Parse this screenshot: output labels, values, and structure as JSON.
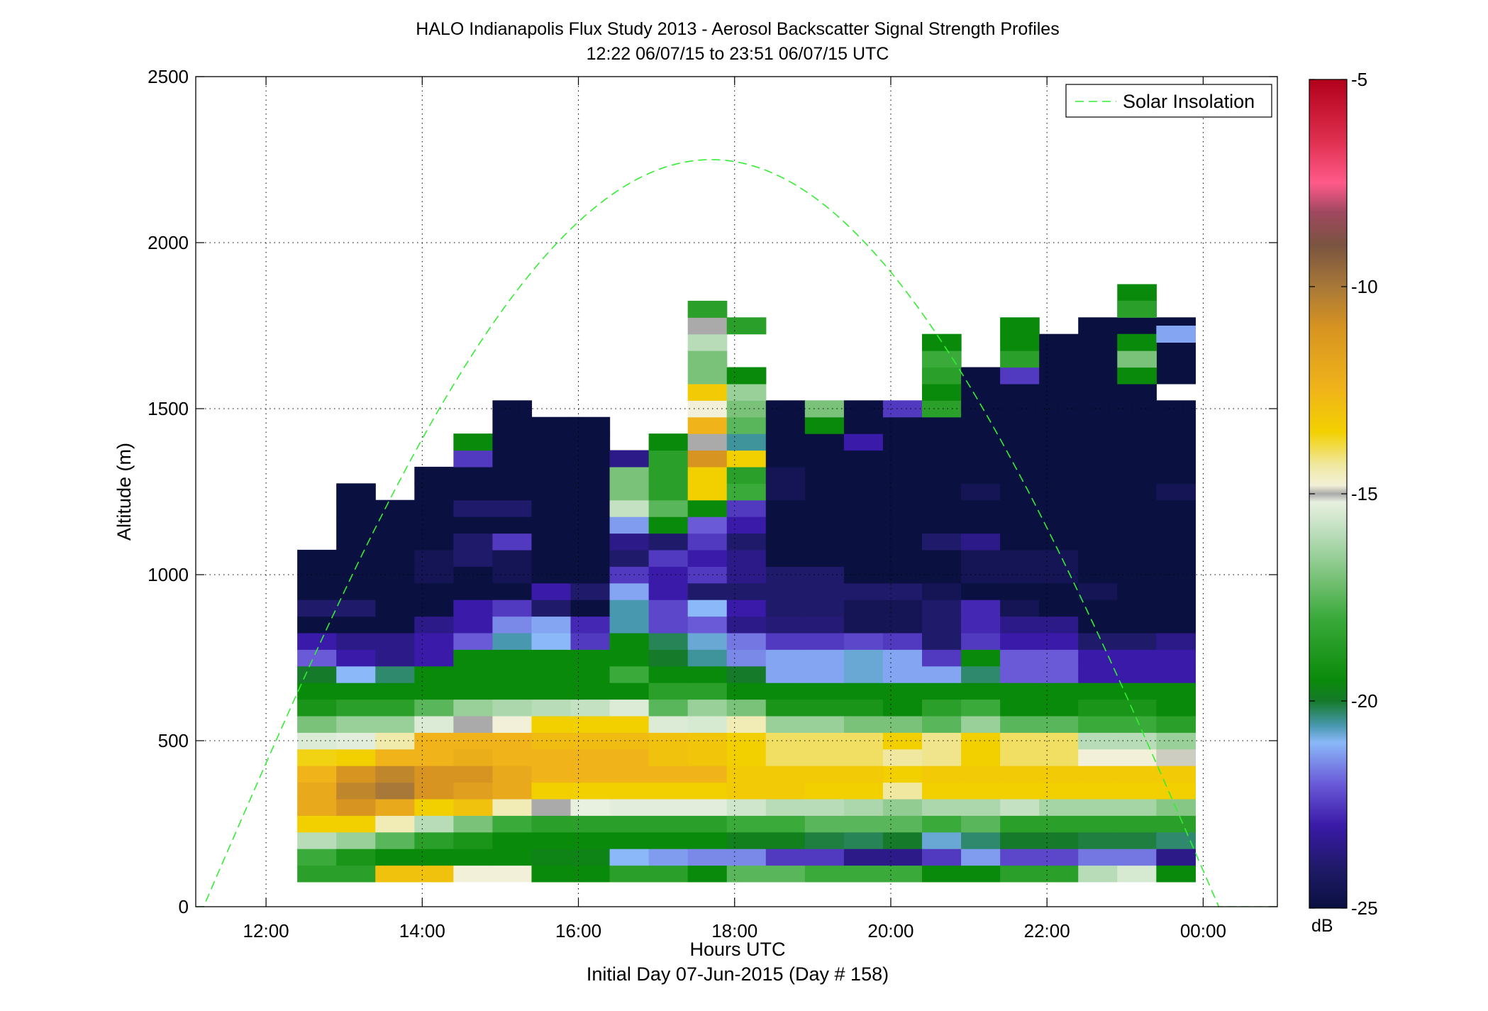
{
  "chart_data": {
    "type": "heatmap",
    "title": "HALO Indianapolis Flux Study 2013 - Aerosol Backscatter Signal Strength Profiles",
    "subtitle": "12:22 06/07/15 to 23:51 06/07/15  UTC",
    "xlabel": "Hours UTC",
    "xlabel2": "Initial Day 07-Jun-2015 (Day # 158)",
    "ylabel": "Altitude (m)",
    "xlim": [
      11.1,
      24.95
    ],
    "ylim": [
      0,
      2500
    ],
    "x_ticks": [
      12,
      14,
      16,
      18,
      20,
      22,
      24
    ],
    "x_tick_labels": [
      "12:00",
      "14:00",
      "16:00",
      "18:00",
      "20:00",
      "22:00",
      "00:00"
    ],
    "y_ticks": [
      0,
      500,
      1000,
      1500,
      2000,
      2500
    ],
    "y_tick_labels": [
      "0",
      "500",
      "1000",
      "1500",
      "2000",
      "2500"
    ],
    "grid": true,
    "legend": {
      "position": "top-right",
      "entries": [
        {
          "name": "Solar Insolation",
          "color": "#33ee33",
          "style": "dashed"
        }
      ]
    },
    "colorbar": {
      "unit": "dB",
      "range": [
        -25,
        -5
      ],
      "ticks": [
        -25,
        -20,
        -15,
        -10,
        -5
      ],
      "tick_labels": [
        "-25",
        "-20",
        "-15",
        "-10",
        "-5"
      ],
      "stops": [
        [
          -25,
          "#0a1040"
        ],
        [
          -24,
          "#201a6a"
        ],
        [
          -23,
          "#3a1aa8"
        ],
        [
          -22,
          "#6a5ad8"
        ],
        [
          -21,
          "#8ab8f8"
        ],
        [
          -20.6,
          "#4898b0"
        ],
        [
          -20,
          "#157a2a"
        ],
        [
          -19.5,
          "#0a8a0a"
        ],
        [
          -18,
          "#3aaa3a"
        ],
        [
          -17,
          "#7ac27a"
        ],
        [
          -16,
          "#b8dcb8"
        ],
        [
          -15.2,
          "#e8f0e0"
        ],
        [
          -15,
          "#aaaaaa"
        ],
        [
          -14.8,
          "#f2f0d8"
        ],
        [
          -14.3,
          "#f0e8a0"
        ],
        [
          -13.5,
          "#f2d000"
        ],
        [
          -12.5,
          "#f0b41a"
        ],
        [
          -11,
          "#d89420"
        ],
        [
          -10,
          "#a87838"
        ],
        [
          -9,
          "#7a5440"
        ],
        [
          -8.2,
          "#a04860"
        ],
        [
          -7.5,
          "#ff5a8a"
        ],
        [
          -6.5,
          "#e03050"
        ],
        [
          -5,
          "#b0001a"
        ]
      ]
    },
    "insolation_curve": {
      "peak_time": 17.7,
      "peak_altitude": 2250,
      "width_hours": 6.5
    },
    "bin_times": [
      12.65,
      13.15,
      13.65,
      14.15,
      14.65,
      15.15,
      15.65,
      16.15,
      16.65,
      17.15,
      17.65,
      18.15,
      18.65,
      19.15,
      19.65,
      20.15,
      20.65,
      21.15,
      21.65,
      22.15,
      22.65,
      23.15,
      23.65
    ],
    "bin_altitudes": [
      100,
      150,
      200,
      250,
      300,
      350,
      400,
      450,
      500,
      550,
      600,
      650,
      700,
      750,
      800,
      850,
      900,
      950,
      1000,
      1050,
      1100,
      1150,
      1200,
      1250,
      1300,
      1350,
      1400,
      1450,
      1500,
      1550,
      1600,
      1650,
      1700,
      1750,
      1800,
      1850
    ],
    "values_dB": [
      [
        -18.5,
        -18.5,
        -13,
        -13,
        -14.8,
        -14.8,
        -19.5,
        -19.5,
        -18.5,
        -18.5,
        -19.5,
        -17.5,
        -17.5,
        -18,
        -18,
        -18,
        -19.5,
        -19.5,
        -18.5,
        -18.5,
        -16,
        -15.5,
        -19.5
      ],
      [
        -18,
        -19,
        -19.5,
        -19.5,
        -19.5,
        -19.5,
        -19.7,
        -19.7,
        -21,
        -21.3,
        -21.5,
        -21.5,
        -22.5,
        -22.5,
        -23.5,
        -23.5,
        -22.5,
        -21.3,
        -22.3,
        -22.3,
        -21.7,
        -21.7,
        -23.5
      ],
      [
        -16,
        -16.5,
        -17.5,
        -18.5,
        -19,
        -19.5,
        -19.5,
        -19.5,
        -19.5,
        -19.5,
        -19.5,
        -19.8,
        -19.8,
        -20.1,
        -20.2,
        -20,
        -20.8,
        -20.3,
        -20,
        -20,
        -20.1,
        -20.1,
        -20.3
      ],
      [
        -13.5,
        -13.5,
        -14.5,
        -16,
        -17,
        -18,
        -18.5,
        -18.5,
        -18.5,
        -18.5,
        -18.5,
        -18,
        -18,
        -17.5,
        -17.5,
        -17.5,
        -18,
        -17.5,
        -18.5,
        -18.5,
        -18.5,
        -18.5,
        -18.5
      ],
      [
        -12,
        -11,
        -12,
        -13.5,
        -13,
        -14.5,
        -15,
        -15.2,
        -15.3,
        -15.3,
        -15.3,
        -15.6,
        -16,
        -16,
        -16.2,
        -16.6,
        -16.2,
        -16.2,
        -15.8,
        -16.3,
        -16.3,
        -16.3,
        -16.8
      ],
      [
        -12,
        -10.5,
        -10,
        -11,
        -11.5,
        -12,
        -13.5,
        -13.5,
        -13.5,
        -13.5,
        -13.5,
        -13.3,
        -13.3,
        -13.5,
        -13.5,
        -14.3,
        -13.5,
        -13.5,
        -13.5,
        -13.5,
        -13.5,
        -13.5,
        -13.5
      ],
      [
        -12.5,
        -11,
        -10.5,
        -11,
        -11,
        -12,
        -12.5,
        -12.5,
        -12.5,
        -12.5,
        -12.5,
        -13.3,
        -13.3,
        -13.3,
        -13.3,
        -13.5,
        -13.3,
        -13.3,
        -13.3,
        -13.3,
        -13.3,
        -13.3,
        -13.3
      ],
      [
        -13.6,
        -13.5,
        -12.5,
        -12.5,
        -12.2,
        -12.5,
        -12.5,
        -12.5,
        -12.5,
        -13,
        -13.1,
        -13.5,
        -14,
        -14,
        -14,
        -14.3,
        -14.2,
        -13.5,
        -14,
        -14,
        -14.8,
        -14.8,
        -14.9
      ],
      [
        -15.4,
        -15.3,
        -14.4,
        -12.5,
        -12.5,
        -12.5,
        -12.8,
        -12.8,
        -12.8,
        -13,
        -13.1,
        -13.5,
        -14,
        -14,
        -14,
        -13.5,
        -14.2,
        -13.5,
        -14,
        -14,
        -16,
        -16,
        -16.5
      ],
      [
        -17,
        -16.5,
        -16.5,
        -15.4,
        -15,
        -14.8,
        -13.5,
        -13.5,
        -13.5,
        -15.4,
        -15.5,
        -14.5,
        -16.5,
        -16.5,
        -17,
        -17,
        -17.5,
        -16.5,
        -17.5,
        -17.5,
        -18,
        -18,
        -18.5
      ],
      [
        -19,
        -18.5,
        -18.5,
        -17.5,
        -16.5,
        -16.2,
        -16,
        -15.8,
        -15.4,
        -17.5,
        -16.5,
        -17,
        -19,
        -19,
        -19,
        -19.5,
        -18.5,
        -18,
        -19.5,
        -19.5,
        -19,
        -19,
        -19.5
      ],
      [
        -19.5,
        -19.5,
        -19.5,
        -19.5,
        -19.5,
        -19.5,
        -19.5,
        -19.5,
        -19.5,
        -18.5,
        -18.5,
        -19.5,
        -19.5,
        -19.5,
        -19.5,
        -19.5,
        -19.5,
        -19.5,
        -19.5,
        -19.5,
        -19.5,
        -19.5,
        -19.5
      ],
      [
        -20,
        -21,
        -20.3,
        -19.5,
        -19.5,
        -19.5,
        -19.5,
        -19.5,
        -18,
        -19.5,
        -19.5,
        -20,
        -21.2,
        -21.2,
        -20.8,
        -21.2,
        -21.2,
        -20.3,
        -22,
        -22,
        -23,
        -23,
        -23
      ],
      [
        -22,
        -23,
        -23.5,
        -23,
        -19.5,
        -19.5,
        -19.5,
        -19.5,
        -19.5,
        -20,
        -20.5,
        -21.5,
        -21.2,
        -21.2,
        -20.8,
        -21.2,
        -22.5,
        -19.5,
        -22,
        -22,
        -23,
        -23,
        -23
      ],
      [
        -23,
        -23.5,
        -23.5,
        -23,
        -22,
        -20.6,
        -21,
        -22.5,
        -19.5,
        -20.2,
        -20.8,
        -21.7,
        -22.5,
        -22.5,
        -22.3,
        -22.5,
        -24,
        -22.5,
        -23,
        -23,
        -24,
        -24,
        -23.5
      ],
      [
        -25,
        -25,
        -25,
        -23.5,
        -23,
        -21.5,
        -21.2,
        -22.8,
        -20.6,
        -22.3,
        -22,
        -23.5,
        -23.8,
        -23.8,
        -24.5,
        -24.5,
        -24,
        -22.8,
        -23.5,
        -23.5,
        -25,
        -25,
        -25
      ],
      [
        -24,
        -24,
        -25,
        -25,
        -23,
        -22.5,
        -24,
        -25,
        -20.6,
        -22.3,
        -21,
        -23,
        -24,
        -24,
        -24.5,
        -24.5,
        -24,
        -22.8,
        -24.5,
        -25,
        -25,
        -25,
        -25
      ],
      [
        -25,
        -25,
        -25,
        -25,
        -25,
        -25,
        -23,
        -24,
        -21.2,
        -23,
        -24,
        -24,
        -24,
        -24,
        -24,
        -24,
        -24.5,
        -25,
        -25,
        -25,
        -24.5,
        -25,
        -25
      ],
      [
        -25,
        -25,
        -25,
        -24.5,
        -25,
        -24.5,
        -25,
        -25,
        -22.5,
        -23,
        -22.5,
        -23.5,
        -24,
        -24,
        -25,
        -25,
        -25,
        -24.5,
        -24.5,
        -24.5,
        -25,
        -25,
        -25
      ],
      [
        -25,
        -25,
        -25,
        -24.5,
        -24,
        -24.5,
        -25,
        -25,
        -24,
        -22.5,
        -23,
        -23.5,
        -25,
        -25,
        -25,
        -25,
        -25,
        -24.5,
        -24.5,
        -24.5,
        -25,
        -25,
        -25
      ],
      [
        null,
        -25,
        -25,
        -25,
        -24,
        -22.5,
        -25,
        -25,
        -23.5,
        -24,
        -22.5,
        -24,
        -25,
        -25,
        -25,
        -25,
        -24,
        -23.5,
        -25,
        -25,
        -25,
        -25,
        -25
      ],
      [
        null,
        -25,
        -25,
        -25,
        -25,
        -25,
        -25,
        -25,
        -21.3,
        -19.5,
        -22,
        -23,
        -25,
        -25,
        -25,
        -25,
        -25,
        -25,
        -25,
        -25,
        -25,
        -25,
        -25
      ],
      [
        null,
        -25,
        -25,
        -25,
        -24,
        -24,
        -25,
        -25,
        -15.8,
        -17.5,
        -19.5,
        -22.5,
        -25,
        -25,
        -25,
        -25,
        -25,
        -25,
        -25,
        -25,
        -25,
        -25,
        -25
      ],
      [
        null,
        -25,
        null,
        -25,
        -25,
        -25,
        -25,
        -25,
        -17,
        -18.5,
        -13.5,
        -18,
        -24.5,
        -25,
        -25,
        -25,
        -25,
        -24.5,
        -25,
        -25,
        -25,
        -25,
        -24.5
      ],
      [
        null,
        null,
        null,
        -25,
        -25,
        -25,
        -25,
        -25,
        -17,
        -18.5,
        -13.5,
        -18.5,
        -24.5,
        -25,
        -25,
        -25,
        -25,
        -25,
        -25,
        -25,
        -25,
        -25,
        -25
      ],
      [
        null,
        null,
        null,
        null,
        -22.5,
        -25,
        -25,
        -25,
        -23.5,
        -18.5,
        -11,
        -13.5,
        -25,
        -25,
        -25,
        -25,
        -25,
        -25,
        -25,
        -25,
        -25,
        -25,
        -25
      ],
      [
        null,
        null,
        null,
        null,
        -19.5,
        -25,
        -25,
        -25,
        null,
        -19.5,
        -15,
        -20.5,
        -25,
        -25,
        -23,
        -25,
        -25,
        -25,
        -25,
        -25,
        -25,
        -25,
        -25
      ],
      [
        null,
        null,
        null,
        null,
        null,
        -25,
        -25,
        -25,
        null,
        null,
        -12.5,
        -17.5,
        -25,
        -19.5,
        -25,
        -25,
        -25,
        -25,
        -25,
        -25,
        -25,
        -25,
        -25
      ],
      [
        null,
        null,
        null,
        null,
        null,
        -25,
        null,
        null,
        null,
        null,
        -14.8,
        -17,
        -25,
        -17,
        -25,
        -22.5,
        -18.5,
        -25,
        -25,
        -25,
        -25,
        -25,
        -25
      ],
      [
        null,
        null,
        null,
        null,
        null,
        null,
        null,
        null,
        null,
        null,
        -13.3,
        -16.5,
        null,
        null,
        null,
        null,
        -19.5,
        -25,
        -25,
        -25,
        -25,
        -25,
        null
      ],
      [
        null,
        null,
        null,
        null,
        null,
        null,
        null,
        null,
        null,
        null,
        -17,
        -19.5,
        null,
        null,
        null,
        null,
        -18.5,
        -25,
        -22.5,
        -25,
        -25,
        -25,
        -25
      ],
      [
        null,
        null,
        null,
        null,
        null,
        null,
        null,
        null,
        null,
        null,
        -17,
        null,
        null,
        null,
        null,
        null,
        -18,
        null,
        -18.5,
        -25,
        -25,
        -25,
        -25
      ],
      [
        null,
        null,
        null,
        null,
        null,
        null,
        null,
        null,
        null,
        null,
        -16,
        null,
        null,
        null,
        null,
        null,
        -19.5,
        null,
        -19.5,
        -25,
        -25,
        -25,
        -25
      ],
      [
        null,
        null,
        null,
        null,
        null,
        null,
        null,
        null,
        null,
        null,
        -15,
        -18.5,
        null,
        null,
        null,
        null,
        null,
        null,
        -19.5,
        null,
        -25,
        -25,
        -25
      ],
      [
        null,
        null,
        null,
        null,
        null,
        null,
        null,
        null,
        null,
        null,
        -18.5,
        null,
        null,
        null,
        null,
        null,
        null,
        null,
        null,
        null,
        null,
        -22,
        null
      ],
      [
        null,
        null,
        null,
        null,
        null,
        null,
        null,
        null,
        null,
        null,
        null,
        null,
        null,
        null,
        null,
        null,
        null,
        null,
        null,
        null,
        null,
        -19.5,
        null
      ]
    ],
    "isolated_cells": [
      {
        "time": 23.15,
        "altitude": 1600,
        "value": -19.5
      },
      {
        "time": 23.15,
        "altitude": 1650,
        "value": -17
      },
      {
        "time": 23.15,
        "altitude": 1700,
        "value": -19.5
      },
      {
        "time": 23.65,
        "altitude": 1725,
        "value": -21.2
      },
      {
        "time": 23.15,
        "altitude": 1800,
        "value": -18.5
      }
    ]
  }
}
